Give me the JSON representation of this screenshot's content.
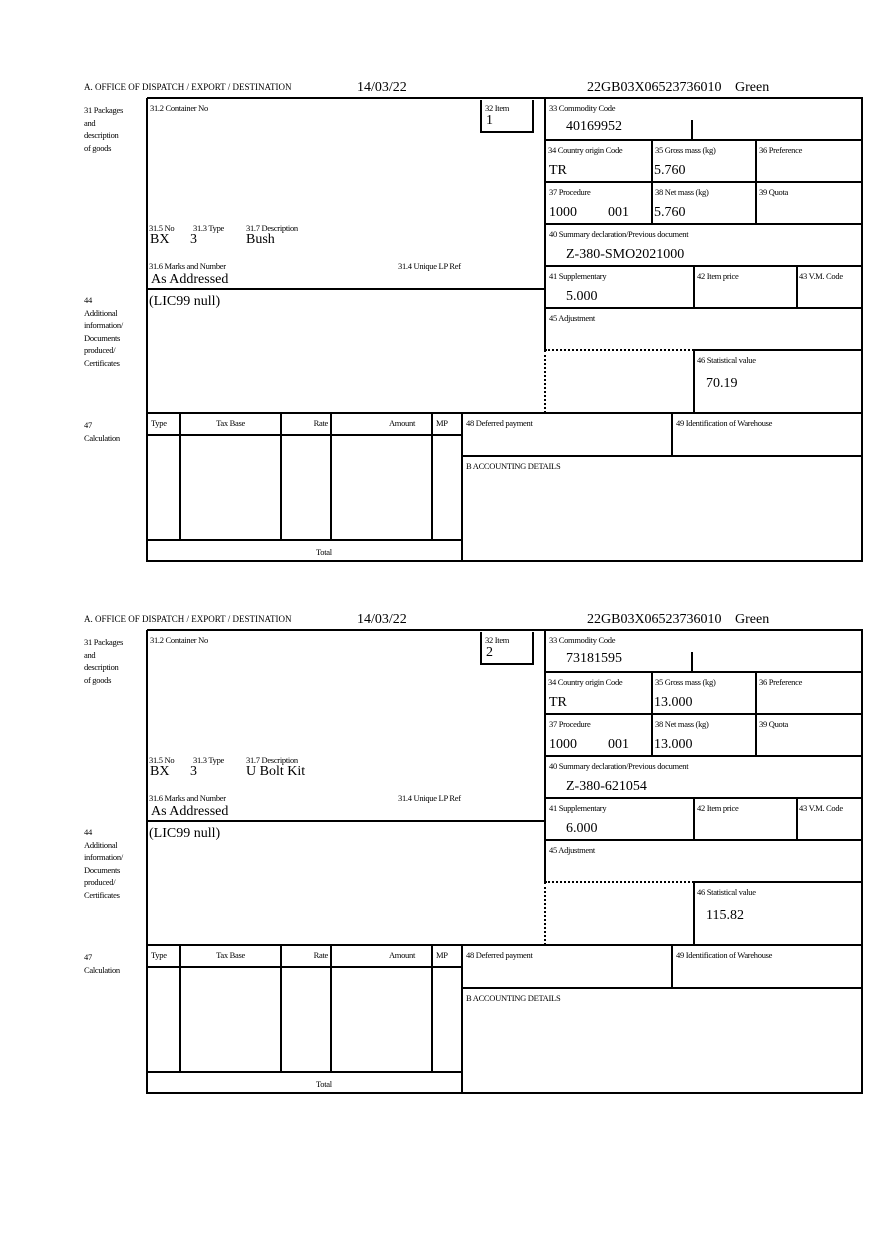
{
  "labels": {
    "office": "A.  OFFICE OF DISPATCH / EXPORT / DESTINATION",
    "box31": "31 Packages\nand\ndescription\nof goods",
    "container_no": "31.2 Container No",
    "item": "32 Item",
    "no": "31.5 No",
    "type": "31.3 Type",
    "description": "31.7 Description",
    "marks": "31.6 Marks and Number",
    "unique_lp_ref": "31.4 Unique LP Ref",
    "box44": "44\nAdditional\ninformation/\nDocuments\nproduced/\nCertificates",
    "commodity_code": "33 Commodity Code",
    "country_origin": "34 Country origin Code",
    "gross_mass": "35 Gross mass (kg)",
    "preference": "36 Preference",
    "procedure": "37 Procedure",
    "net_mass": "38 Net mass (kg)",
    "quota": "39 Quota",
    "summary_decl": "40 Summary declaration/Previous document",
    "supplementary": "41 Supplementary",
    "item_price": "42 Item price",
    "vm_code": "43 V.M. Code",
    "adjustment": "45 Adjustment",
    "statistical_value": "46 Statistical value",
    "box47": "47\nCalculation",
    "calc_type": "Type",
    "calc_tax_base": "Tax Base",
    "calc_rate": "Rate",
    "calc_amount": "Amount",
    "calc_mp": "MP",
    "calc_total": "Total",
    "deferred_payment": "48 Deferred payment",
    "warehouse": "49 Identification of Warehouse",
    "accounting": "B ACCOUNTING DETAILS"
  },
  "forms": [
    {
      "date": "14/03/22",
      "reference": "22GB03X06523736010",
      "status": "Green",
      "item": "1",
      "no": "BX",
      "type": "3",
      "description": "Bush",
      "marks": "As Addressed",
      "additional_info": "(LIC99 null)",
      "commodity_code": "40169952",
      "country_origin": "TR",
      "gross_mass": "5.760",
      "procedure": "1000",
      "procedure_additional": "001",
      "net_mass": "5.760",
      "summary_decl": "Z-380-SMO2021000",
      "supplementary": "5.000",
      "statistical_value": "70.19"
    },
    {
      "date": "14/03/22",
      "reference": "22GB03X06523736010",
      "status": "Green",
      "item": "2",
      "no": "BX",
      "type": "3",
      "description": "U Bolt Kit",
      "marks": "As Addressed",
      "additional_info": "(LIC99 null)",
      "commodity_code": "73181595",
      "country_origin": "TR",
      "gross_mass": "13.000",
      "procedure": "1000",
      "procedure_additional": "001",
      "net_mass": "13.000",
      "summary_decl": "Z-380-621054",
      "supplementary": "6.000",
      "statistical_value": "115.82"
    }
  ]
}
